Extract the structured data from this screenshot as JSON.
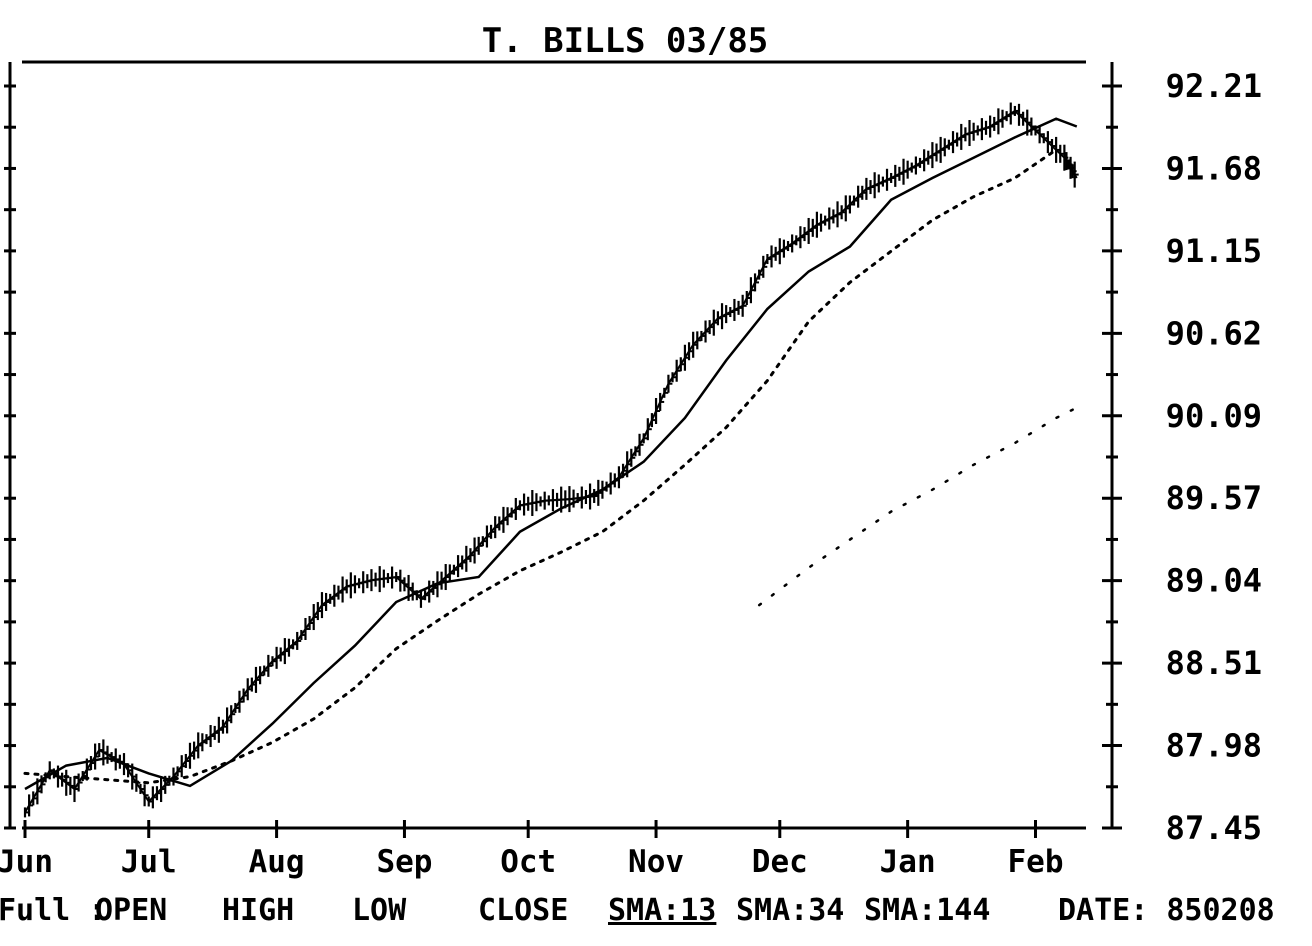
{
  "chart_data": {
    "type": "line",
    "title": "T. BILLS  03/85",
    "xlabel": "",
    "ylabel": "",
    "ylim": [
      87.45,
      92.21
    ],
    "y_ticks": [
      "92.21",
      "91.68",
      "91.15",
      "90.62",
      "90.09",
      "89.57",
      "89.04",
      "88.51",
      "87.98",
      "87.45"
    ],
    "x_ticks": [
      {
        "label": "Jun",
        "day": 0
      },
      {
        "label": "Jul",
        "day": 30
      },
      {
        "label": "Aug",
        "day": 61
      },
      {
        "label": "Sep",
        "day": 92
      },
      {
        "label": "Oct",
        "day": 122
      },
      {
        "label": "Nov",
        "day": 153
      },
      {
        "label": "Dec",
        "day": 183
      },
      {
        "label": "Jan",
        "day": 214
      },
      {
        "label": "Feb",
        "day": 245
      }
    ],
    "grid": false,
    "footer": {
      "mode": "Full :",
      "items": [
        "OPEN",
        "HIGH",
        "LOW",
        "CLOSE",
        "SMA:13",
        "SMA:34",
        "SMA:144"
      ],
      "date": "DATE: 850208"
    },
    "series": [
      {
        "style": "bars",
        "x": [
          0,
          6,
          12,
          18,
          24,
          30,
          36,
          42,
          48,
          54,
          60,
          66,
          72,
          78,
          84,
          90,
          96,
          102,
          108,
          114,
          120,
          126,
          132,
          138,
          144,
          150,
          156,
          162,
          168,
          174,
          180,
          186,
          192,
          198,
          204,
          210,
          216,
          222,
          228,
          234,
          240,
          246,
          252,
          255
        ],
        "values": [
          87.55,
          87.82,
          87.7,
          87.95,
          87.86,
          87.62,
          87.78,
          87.98,
          88.1,
          88.34,
          88.52,
          88.65,
          88.88,
          89.0,
          89.04,
          89.06,
          88.92,
          89.06,
          89.2,
          89.38,
          89.52,
          89.55,
          89.56,
          89.58,
          89.7,
          89.95,
          90.3,
          90.55,
          90.72,
          90.8,
          91.1,
          91.2,
          91.32,
          91.4,
          91.55,
          91.62,
          91.7,
          91.8,
          91.9,
          91.95,
          92.05,
          91.9,
          91.75,
          91.62
        ]
      },
      {
        "style": "solid",
        "x": [
          0,
          10,
          20,
          30,
          40,
          50,
          60,
          70,
          80,
          90,
          100,
          110,
          120,
          130,
          140,
          150,
          160,
          170,
          180,
          190,
          200,
          210,
          220,
          230,
          240,
          250,
          255
        ],
        "values": [
          87.7,
          87.85,
          87.9,
          87.8,
          87.72,
          87.88,
          88.12,
          88.38,
          88.62,
          88.9,
          89.02,
          89.06,
          89.35,
          89.5,
          89.62,
          89.8,
          90.08,
          90.45,
          90.78,
          91.02,
          91.18,
          91.48,
          91.62,
          91.75,
          91.88,
          92.0,
          91.95
        ]
      },
      {
        "style": "dotted",
        "x": [
          0,
          10,
          20,
          30,
          40,
          50,
          60,
          70,
          80,
          90,
          100,
          110,
          120,
          130,
          140,
          150,
          160,
          170,
          180,
          190,
          200,
          210,
          220,
          230,
          240,
          250
        ],
        "values": [
          87.8,
          87.78,
          87.76,
          87.74,
          87.78,
          87.88,
          88.0,
          88.15,
          88.35,
          88.6,
          88.78,
          88.95,
          89.1,
          89.22,
          89.35,
          89.55,
          89.78,
          90.02,
          90.32,
          90.7,
          90.95,
          91.15,
          91.35,
          91.5,
          91.62,
          91.8
        ]
      },
      {
        "style": "sparse-dotted",
        "x": [
          178,
          190,
          200,
          210,
          220,
          230,
          240,
          250,
          256
        ],
        "values": [
          88.88,
          89.12,
          89.3,
          89.48,
          89.62,
          89.78,
          89.92,
          90.08,
          90.16
        ]
      }
    ]
  }
}
